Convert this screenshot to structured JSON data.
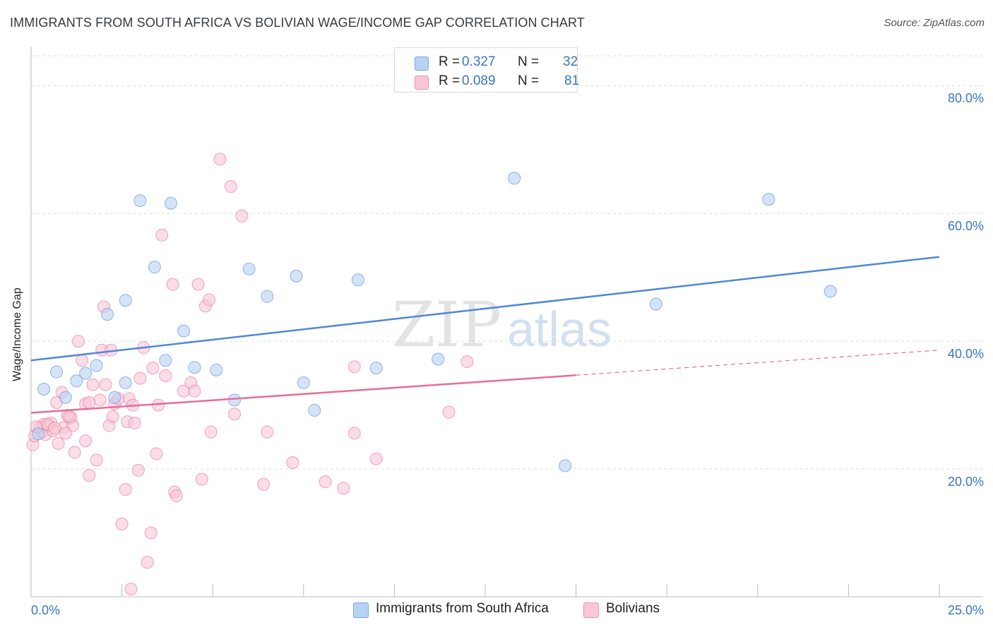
{
  "header": {
    "title": "IMMIGRANTS FROM SOUTH AFRICA VS BOLIVIAN WAGE/INCOME GAP CORRELATION CHART",
    "source": "Source: ZipAtlas.com"
  },
  "legend": {
    "r_label": "R =",
    "n_label": "N =",
    "series": [
      {
        "r": "0.327",
        "n": "32",
        "fill": "#b8d2f3",
        "stroke": "#7aa8e0"
      },
      {
        "r": "0.089",
        "n": "81",
        "fill": "#f9c6d6",
        "stroke": "#ee94b2"
      }
    ]
  },
  "watermark": {
    "zip": "ZIP",
    "atlas": "atlas"
  },
  "chart_data": {
    "type": "scatter",
    "title": "IMMIGRANTS FROM SOUTH AFRICA VS BOLIVIAN WAGE/INCOME GAP CORRELATION CHART",
    "xlabel": "",
    "ylabel": "Wage/Income Gap",
    "xlim": [
      0,
      25
    ],
    "ylim": [
      0,
      85
    ],
    "x_tick_labels": [
      "0.0%",
      "25.0%"
    ],
    "y_ticks": [
      20,
      40,
      60,
      80
    ],
    "y_tick_labels": [
      "20.0%",
      "40.0%",
      "60.0%",
      "80.0%"
    ],
    "grid": true,
    "legend_position": "top-center",
    "series": [
      {
        "name": "Immigrants from South Africa",
        "color": "#4f87d8",
        "fill": "#b8d2f3",
        "trend": {
          "x0": 0,
          "y0": 37.0,
          "x1": 25,
          "y1": 53.2,
          "dashed_from": null
        },
        "points": [
          [
            0.35,
            32.5
          ],
          [
            0.7,
            35.2
          ],
          [
            0.95,
            31.2
          ],
          [
            1.25,
            33.8
          ],
          [
            1.5,
            35.0
          ],
          [
            1.8,
            36.2
          ],
          [
            2.1,
            44.2
          ],
          [
            2.3,
            31.2
          ],
          [
            2.6,
            33.5
          ],
          [
            2.6,
            46.4
          ],
          [
            3.0,
            62.0
          ],
          [
            3.4,
            51.6
          ],
          [
            3.7,
            37.0
          ],
          [
            3.85,
            61.6
          ],
          [
            4.2,
            41.6
          ],
          [
            4.5,
            35.9
          ],
          [
            5.1,
            35.5
          ],
          [
            5.6,
            30.8
          ],
          [
            6.0,
            51.3
          ],
          [
            6.5,
            47.0
          ],
          [
            7.3,
            50.2
          ],
          [
            7.5,
            33.5
          ],
          [
            7.8,
            29.2
          ],
          [
            9.0,
            49.6
          ],
          [
            9.5,
            35.8
          ],
          [
            11.2,
            37.2
          ],
          [
            13.3,
            65.5
          ],
          [
            14.7,
            20.5
          ],
          [
            17.2,
            45.8
          ],
          [
            20.3,
            62.2
          ],
          [
            22.0,
            47.8
          ],
          [
            0.2,
            25.5
          ]
        ]
      },
      {
        "name": "Bolivians",
        "color": "#e86c96",
        "fill": "#f9c6d6",
        "trend": {
          "x0": 0,
          "y0": 28.8,
          "x1": 25,
          "y1": 38.6,
          "dashed_from": 15.0
        },
        "points": [
          [
            0.05,
            23.8
          ],
          [
            0.1,
            25.2
          ],
          [
            0.25,
            26.5
          ],
          [
            0.3,
            25.8
          ],
          [
            0.35,
            27.0
          ],
          [
            0.4,
            25.4
          ],
          [
            0.5,
            26.8
          ],
          [
            0.55,
            27.2
          ],
          [
            0.6,
            26.0
          ],
          [
            0.7,
            30.4
          ],
          [
            0.75,
            24.0
          ],
          [
            0.85,
            32.0
          ],
          [
            0.9,
            26.5
          ],
          [
            1.0,
            28.4
          ],
          [
            1.1,
            28.0
          ],
          [
            1.15,
            26.8
          ],
          [
            1.2,
            22.6
          ],
          [
            1.3,
            40.0
          ],
          [
            1.4,
            37.0
          ],
          [
            1.5,
            30.2
          ],
          [
            1.5,
            24.4
          ],
          [
            1.6,
            30.4
          ],
          [
            1.6,
            19.0
          ],
          [
            1.7,
            33.2
          ],
          [
            1.8,
            21.4
          ],
          [
            1.9,
            30.8
          ],
          [
            1.95,
            38.6
          ],
          [
            2.0,
            45.4
          ],
          [
            2.05,
            33.2
          ],
          [
            2.15,
            26.8
          ],
          [
            2.2,
            38.6
          ],
          [
            2.25,
            28.2
          ],
          [
            2.3,
            30.2
          ],
          [
            2.4,
            31.0
          ],
          [
            2.5,
            11.4
          ],
          [
            2.6,
            16.8
          ],
          [
            2.65,
            27.4
          ],
          [
            2.7,
            31.0
          ],
          [
            2.75,
            1.2
          ],
          [
            2.8,
            30.0
          ],
          [
            2.85,
            27.2
          ],
          [
            2.95,
            19.8
          ],
          [
            3.0,
            34.2
          ],
          [
            3.1,
            39.0
          ],
          [
            3.2,
            5.4
          ],
          [
            3.3,
            10.0
          ],
          [
            3.35,
            35.8
          ],
          [
            3.45,
            22.4
          ],
          [
            3.5,
            30.0
          ],
          [
            3.6,
            56.6
          ],
          [
            3.7,
            34.6
          ],
          [
            3.9,
            48.9
          ],
          [
            3.95,
            16.4
          ],
          [
            4.0,
            15.8
          ],
          [
            4.2,
            32.2
          ],
          [
            4.4,
            33.5
          ],
          [
            4.5,
            32.2
          ],
          [
            4.6,
            48.9
          ],
          [
            4.7,
            18.4
          ],
          [
            4.8,
            45.5
          ],
          [
            4.9,
            46.5
          ],
          [
            4.95,
            25.8
          ],
          [
            5.2,
            68.5
          ],
          [
            5.5,
            64.2
          ],
          [
            5.6,
            28.6
          ],
          [
            5.8,
            59.6
          ],
          [
            6.4,
            17.6
          ],
          [
            6.5,
            25.8
          ],
          [
            7.2,
            21.0
          ],
          [
            8.1,
            18.0
          ],
          [
            8.6,
            17.0
          ],
          [
            8.9,
            36.0
          ],
          [
            8.9,
            25.6
          ],
          [
            9.5,
            21.6
          ],
          [
            11.5,
            28.9
          ],
          [
            12.0,
            36.8
          ],
          [
            0.15,
            26.6
          ],
          [
            0.45,
            27.0
          ],
          [
            1.05,
            28.2
          ],
          [
            0.65,
            26.4
          ],
          [
            0.95,
            25.6
          ]
        ]
      }
    ]
  },
  "bottom_legend": [
    {
      "label": "Immigrants from South Africa",
      "fill": "#b8d2f3",
      "stroke": "#7aa8e0"
    },
    {
      "label": "Bolivians",
      "fill": "#f9c6d6",
      "stroke": "#ee94b2"
    }
  ]
}
